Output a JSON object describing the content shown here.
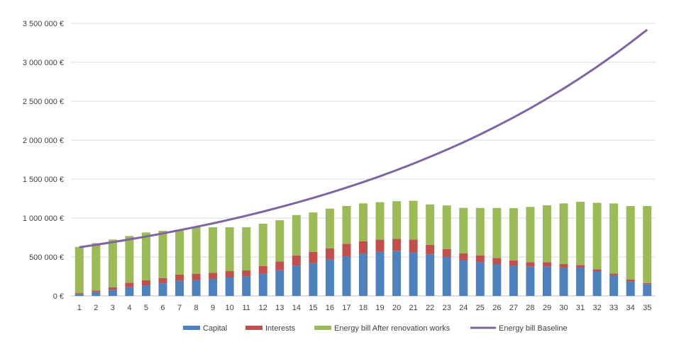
{
  "chart_data": {
    "type": "bar",
    "stacked": true,
    "title": "",
    "xlabel": "",
    "ylabel": "",
    "ylim": [
      0,
      3500000
    ],
    "y_ticks": [
      0,
      500000,
      1000000,
      1500000,
      2000000,
      2500000,
      3000000,
      3500000
    ],
    "y_tick_labels": [
      "0 €",
      "500 000 €",
      "1 000 000 €",
      "1 500 000 €",
      "2 000 000 €",
      "2 500 000 €",
      "3 000 000 €",
      "3 500 000 €"
    ],
    "grid": true,
    "legend_position": "bottom",
    "categories": [
      "1",
      "2",
      "3",
      "4",
      "5",
      "6",
      "7",
      "8",
      "9",
      "10",
      "11",
      "12",
      "13",
      "14",
      "15",
      "16",
      "17",
      "18",
      "19",
      "20",
      "21",
      "22",
      "23",
      "24",
      "25",
      "26",
      "27",
      "28",
      "29",
      "30",
      "31",
      "32",
      "33",
      "34",
      "35"
    ],
    "series": [
      {
        "name": "Capital",
        "type": "bar",
        "color": "#4f81bd",
        "values": [
          21000,
          48000,
          79000,
          112000,
          136000,
          161000,
          194000,
          203000,
          218000,
          236000,
          251000,
          285000,
          330000,
          385000,
          421000,
          467000,
          509000,
          545000,
          567000,
          579000,
          558000,
          533000,
          500000,
          455000,
          433000,
          409000,
          385000,
          376000,
          376000,
          364000,
          364000,
          318000,
          264000,
          185000,
          152000
        ]
      },
      {
        "name": "Interests",
        "type": "bar",
        "color": "#c0504d",
        "values": [
          15000,
          21000,
          33000,
          58000,
          67000,
          67000,
          79000,
          82000,
          79000,
          82000,
          79000,
          100000,
          112000,
          136000,
          145000,
          145000,
          161000,
          158000,
          155000,
          155000,
          167000,
          124000,
          103000,
          91000,
          88000,
          79000,
          70000,
          58000,
          58000,
          45000,
          33000,
          24000,
          24000,
          24000,
          12000
        ]
      },
      {
        "name": "Energy bill After renovation works",
        "type": "bar",
        "color": "#9bbb59",
        "values": [
          594000,
          609000,
          612000,
          600000,
          612000,
          609000,
          573000,
          597000,
          585000,
          564000,
          552000,
          542000,
          530000,
          518000,
          506000,
          509000,
          485000,
          485000,
          482000,
          482000,
          497000,
          518000,
          560000,
          585000,
          609000,
          642000,
          673000,
          709000,
          730000,
          779000,
          812000,
          854000,
          900000,
          945000,
          991000
        ]
      },
      {
        "name": "Energy bill Baseline",
        "type": "line",
        "color": "#8064a2",
        "values": [
          625000,
          657000,
          691000,
          726000,
          763000,
          803000,
          844000,
          887000,
          932000,
          980000,
          1030000,
          1083000,
          1139000,
          1197000,
          1259000,
          1323000,
          1391000,
          1462000,
          1537000,
          1616000,
          1699000,
          1786000,
          1877000,
          1973000,
          2074000,
          2181000,
          2293000,
          2410000,
          2534000,
          2663000,
          2800000,
          2943000,
          3094000,
          3253000,
          3419000
        ]
      }
    ]
  }
}
